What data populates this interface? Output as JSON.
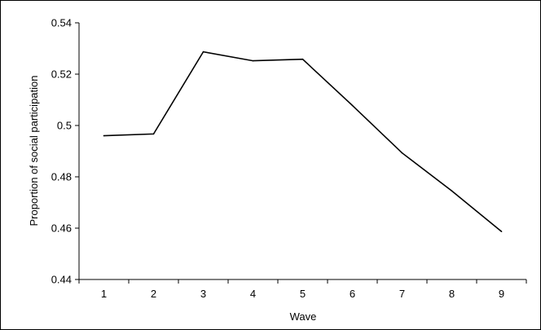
{
  "chart_data": {
    "type": "line",
    "title": "",
    "xlabel": "Wave",
    "ylabel": "Proportion of social participation",
    "x": [
      1,
      2,
      3,
      4,
      5,
      6,
      7,
      8,
      9
    ],
    "series": [
      {
        "values": [
          0.496,
          0.4967,
          0.5287,
          0.5252,
          0.5258,
          0.5078,
          0.4893,
          0.4745,
          0.4587
        ]
      }
    ],
    "ylim": [
      0.44,
      0.54
    ],
    "yticks": [
      0.44,
      0.46,
      0.48,
      0.5,
      0.52,
      0.54
    ],
    "ytick_labels": [
      "0.44",
      "0.46",
      "0.48",
      "0.5",
      "0.52",
      "0.54"
    ],
    "xtick_labels": [
      "1",
      "2",
      "3",
      "4",
      "5",
      "6",
      "7",
      "8",
      "9"
    ],
    "grid": false,
    "legend": "none",
    "line_color": "#000000"
  }
}
